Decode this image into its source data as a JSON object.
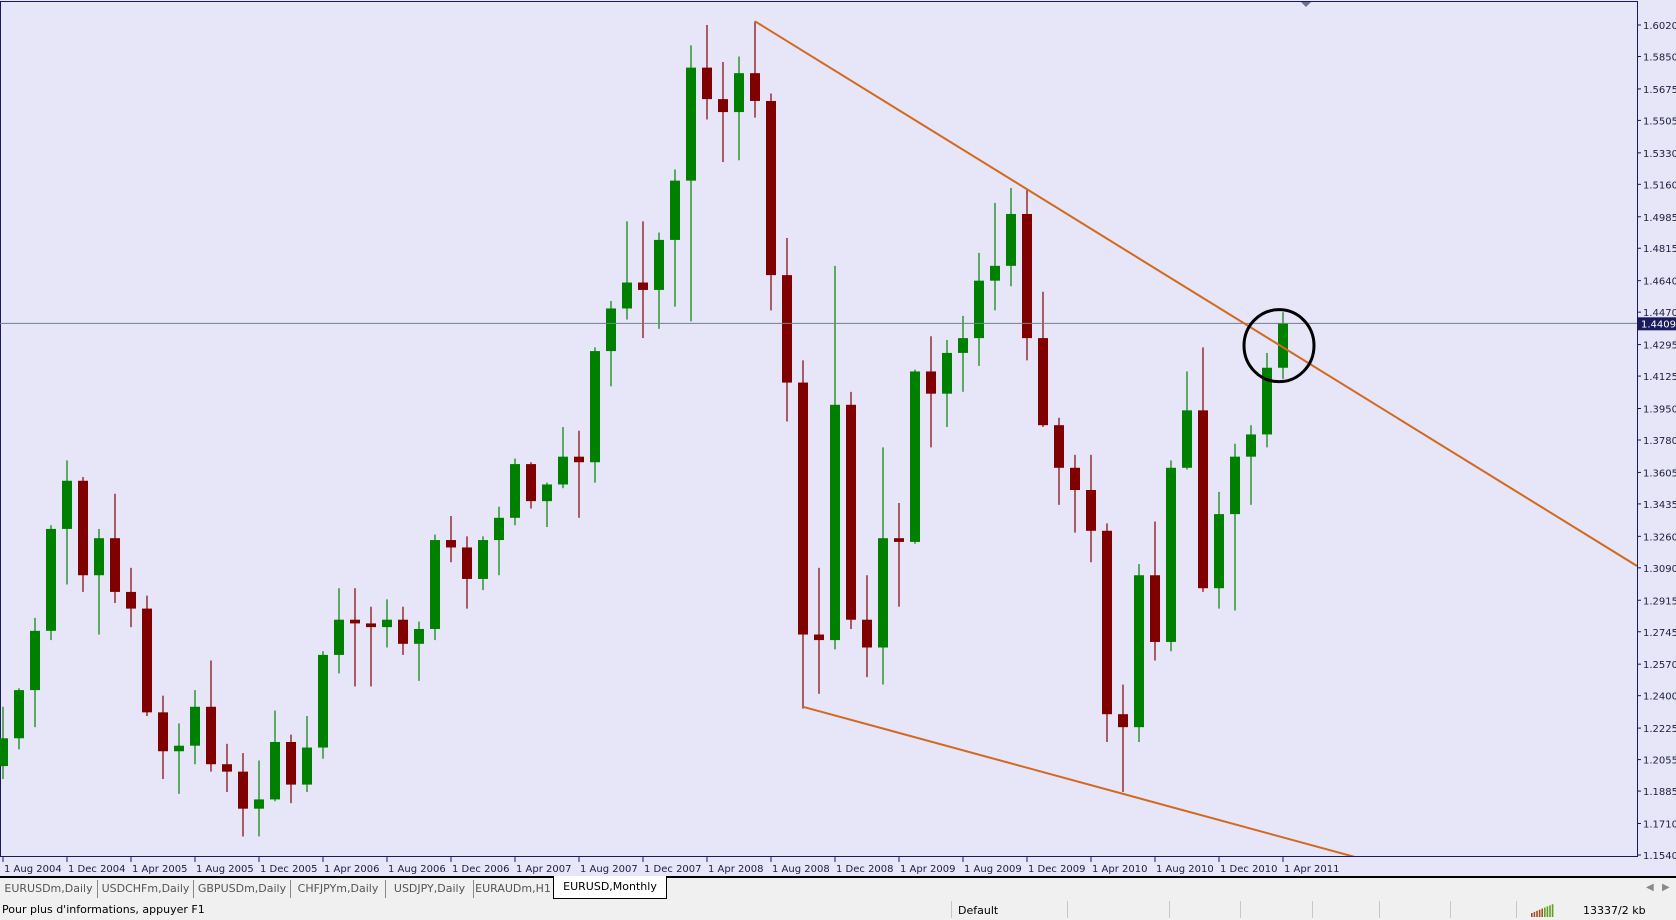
{
  "colors": {
    "background": "#e6e6f8",
    "bull": "#008000",
    "bear": "#800000",
    "trendline": "#d2691e",
    "bid_line": "#708090",
    "axis": "#1a1a5e",
    "price_tag_bg": "#1a1a5e",
    "circle": "#000000"
  },
  "current_price_label": "1.44098",
  "chart_data": {
    "type": "candlestick",
    "symbol_period": "EURUSD,Monthly",
    "columns": [
      "date",
      "open",
      "high",
      "low",
      "close"
    ],
    "candles": [
      [
        "2004-08",
        1.202,
        1.234,
        1.195,
        1.217
      ],
      [
        "2004-09",
        1.217,
        1.244,
        1.211,
        1.243
      ],
      [
        "2004-10",
        1.243,
        1.282,
        1.223,
        1.275
      ],
      [
        "2004-11",
        1.275,
        1.332,
        1.27,
        1.33
      ],
      [
        "2004-12",
        1.33,
        1.367,
        1.3,
        1.356
      ],
      [
        "2005-01",
        1.356,
        1.358,
        1.296,
        1.305
      ],
      [
        "2005-02",
        1.305,
        1.33,
        1.273,
        1.325
      ],
      [
        "2005-03",
        1.325,
        1.349,
        1.29,
        1.296
      ],
      [
        "2005-04",
        1.296,
        1.309,
        1.277,
        1.287
      ],
      [
        "2005-05",
        1.287,
        1.294,
        1.229,
        1.231
      ],
      [
        "2005-06",
        1.231,
        1.24,
        1.195,
        1.21
      ],
      [
        "2005-07",
        1.21,
        1.225,
        1.187,
        1.213
      ],
      [
        "2005-08",
        1.213,
        1.243,
        1.203,
        1.234
      ],
      [
        "2005-09",
        1.234,
        1.259,
        1.199,
        1.203
      ],
      [
        "2005-10",
        1.203,
        1.214,
        1.188,
        1.199
      ],
      [
        "2005-11",
        1.199,
        1.209,
        1.164,
        1.179
      ],
      [
        "2005-12",
        1.179,
        1.205,
        1.164,
        1.184
      ],
      [
        "2006-01",
        1.184,
        1.232,
        1.183,
        1.215
      ],
      [
        "2006-02",
        1.215,
        1.219,
        1.182,
        1.192
      ],
      [
        "2006-03",
        1.192,
        1.229,
        1.188,
        1.212
      ],
      [
        "2006-04",
        1.212,
        1.264,
        1.206,
        1.262
      ],
      [
        "2006-05",
        1.262,
        1.298,
        1.252,
        1.281
      ],
      [
        "2006-06",
        1.281,
        1.298,
        1.245,
        1.279
      ],
      [
        "2006-07",
        1.279,
        1.288,
        1.245,
        1.277
      ],
      [
        "2006-08",
        1.277,
        1.292,
        1.266,
        1.281
      ],
      [
        "2006-09",
        1.281,
        1.288,
        1.262,
        1.268
      ],
      [
        "2006-10",
        1.268,
        1.28,
        1.248,
        1.276
      ],
      [
        "2006-11",
        1.276,
        1.327,
        1.27,
        1.324
      ],
      [
        "2006-12",
        1.324,
        1.337,
        1.312,
        1.32
      ],
      [
        "2007-01",
        1.32,
        1.326,
        1.287,
        1.303
      ],
      [
        "2007-02",
        1.303,
        1.326,
        1.297,
        1.324
      ],
      [
        "2007-03",
        1.324,
        1.342,
        1.305,
        1.336
      ],
      [
        "2007-04",
        1.336,
        1.368,
        1.332,
        1.365
      ],
      [
        "2007-05",
        1.365,
        1.366,
        1.341,
        1.345
      ],
      [
        "2007-06",
        1.345,
        1.355,
        1.331,
        1.354
      ],
      [
        "2007-07",
        1.354,
        1.385,
        1.352,
        1.369
      ],
      [
        "2007-08",
        1.369,
        1.383,
        1.336,
        1.366
      ],
      [
        "2007-09",
        1.366,
        1.428,
        1.355,
        1.426
      ],
      [
        "2007-10",
        1.426,
        1.453,
        1.407,
        1.449
      ],
      [
        "2007-11",
        1.449,
        1.496,
        1.443,
        1.463
      ],
      [
        "2007-12",
        1.463,
        1.496,
        1.433,
        1.459
      ],
      [
        "2008-01",
        1.459,
        1.49,
        1.438,
        1.486
      ],
      [
        "2008-02",
        1.486,
        1.524,
        1.45,
        1.518
      ],
      [
        "2008-03",
        1.518,
        1.591,
        1.442,
        1.579
      ],
      [
        "2008-04",
        1.579,
        1.602,
        1.551,
        1.562
      ],
      [
        "2008-05",
        1.562,
        1.582,
        1.528,
        1.555
      ],
      [
        "2008-06",
        1.555,
        1.585,
        1.529,
        1.576
      ],
      [
        "2008-07",
        1.576,
        1.604,
        1.552,
        1.561
      ],
      [
        "2008-08",
        1.561,
        1.565,
        1.448,
        1.467
      ],
      [
        "2008-09",
        1.467,
        1.487,
        1.388,
        1.409
      ],
      [
        "2008-10",
        1.409,
        1.421,
        1.233,
        1.273
      ],
      [
        "2008-11",
        1.273,
        1.309,
        1.241,
        1.27
      ],
      [
        "2008-12",
        1.27,
        1.472,
        1.265,
        1.397
      ],
      [
        "2009-01",
        1.397,
        1.404,
        1.276,
        1.281
      ],
      [
        "2009-02",
        1.281,
        1.305,
        1.25,
        1.266
      ],
      [
        "2009-03",
        1.266,
        1.374,
        1.246,
        1.325
      ],
      [
        "2009-04",
        1.325,
        1.344,
        1.288,
        1.323
      ],
      [
        "2009-05",
        1.323,
        1.416,
        1.322,
        1.415
      ],
      [
        "2009-06",
        1.415,
        1.434,
        1.374,
        1.403
      ],
      [
        "2009-07",
        1.403,
        1.432,
        1.385,
        1.425
      ],
      [
        "2009-08",
        1.425,
        1.445,
        1.404,
        1.433
      ],
      [
        "2009-09",
        1.433,
        1.479,
        1.418,
        1.464
      ],
      [
        "2009-10",
        1.464,
        1.506,
        1.448,
        1.472
      ],
      [
        "2009-11",
        1.472,
        1.514,
        1.461,
        1.5
      ],
      [
        "2009-12",
        1.5,
        1.513,
        1.421,
        1.433
      ],
      [
        "2010-01",
        1.433,
        1.458,
        1.385,
        1.386
      ],
      [
        "2010-02",
        1.386,
        1.39,
        1.343,
        1.363
      ],
      [
        "2010-03",
        1.363,
        1.37,
        1.328,
        1.351
      ],
      [
        "2010-04",
        1.351,
        1.37,
        1.312,
        1.329
      ],
      [
        "2010-05",
        1.329,
        1.333,
        1.215,
        1.23
      ],
      [
        "2010-06",
        1.23,
        1.246,
        1.188,
        1.223
      ],
      [
        "2010-07",
        1.223,
        1.311,
        1.215,
        1.305
      ],
      [
        "2010-08",
        1.305,
        1.334,
        1.259,
        1.269
      ],
      [
        "2010-09",
        1.269,
        1.367,
        1.264,
        1.363
      ],
      [
        "2010-10",
        1.363,
        1.415,
        1.362,
        1.394
      ],
      [
        "2010-11",
        1.394,
        1.428,
        1.296,
        1.298
      ],
      [
        "2010-12",
        1.298,
        1.35,
        1.287,
        1.338
      ],
      [
        "2011-01",
        1.338,
        1.376,
        1.286,
        1.369
      ],
      [
        "2011-02",
        1.369,
        1.386,
        1.343,
        1.381
      ],
      [
        "2011-03",
        1.381,
        1.425,
        1.374,
        1.417
      ],
      [
        "2011-04",
        1.417,
        1.447,
        1.411,
        1.441
      ]
    ],
    "price_axis_ticks": [
      "1.60200",
      "1.58500",
      "1.56750",
      "1.55050",
      "1.53300",
      "1.51600",
      "1.49850",
      "1.48150",
      "1.46400",
      "1.44700",
      "1.42950",
      "1.41250",
      "1.39500",
      "1.37800",
      "1.36050",
      "1.34350",
      "1.32600",
      "1.30900",
      "1.29150",
      "1.27450",
      "1.25700",
      "1.24000",
      "1.22250",
      "1.20550",
      "1.18850",
      "1.17100",
      "1.15400"
    ],
    "time_axis_labels": [
      "1 Aug 2004",
      "1 Dec 2004",
      "1 Apr 2005",
      "1 Aug 2005",
      "1 Dec 2005",
      "1 Apr 2006",
      "1 Aug 2006",
      "1 Dec 2006",
      "1 Apr 2007",
      "1 Aug 2007",
      "1 Dec 2007",
      "1 Apr 2008",
      "1 Aug 2008",
      "1 Dec 2008",
      "1 Apr 2009",
      "1 Aug 2009",
      "1 Dec 2009",
      "1 Apr 2010",
      "1 Aug 2010",
      "1 Dec 2010",
      "1 Apr 2011"
    ],
    "ylim": [
      1.154,
      1.602
    ],
    "bid_line": 1.44098,
    "trendlines": [
      {
        "points": [
          [
            "2008-07",
            1.604
          ],
          [
            "2011-04",
            1.428
          ]
        ],
        "extend": "right"
      },
      {
        "points": [
          [
            "2008-10",
            1.234
          ],
          [
            "2010-06",
            1.187
          ]
        ],
        "extend": "right"
      }
    ],
    "annotation_circle": {
      "date": "2011-04",
      "price": 1.43
    },
    "grid": false
  },
  "tabs": [
    {
      "label": "EURUSDm,Daily",
      "active": false
    },
    {
      "label": "USDCHFm,Daily",
      "active": false
    },
    {
      "label": "GBPUSDm,Daily",
      "active": false
    },
    {
      "label": "CHFJPYm,Daily",
      "active": false
    },
    {
      "label": "USDJPY,Daily",
      "active": false
    },
    {
      "label": "EURAUDm,H1",
      "active": false
    },
    {
      "label": "EURUSD,Monthly",
      "active": true
    }
  ],
  "status": {
    "help_text": "Pour plus d'informations, appuyer F1",
    "profile": "Default",
    "connection_icon": "connection-bars-icon",
    "traffic": "13337/2 kb"
  }
}
